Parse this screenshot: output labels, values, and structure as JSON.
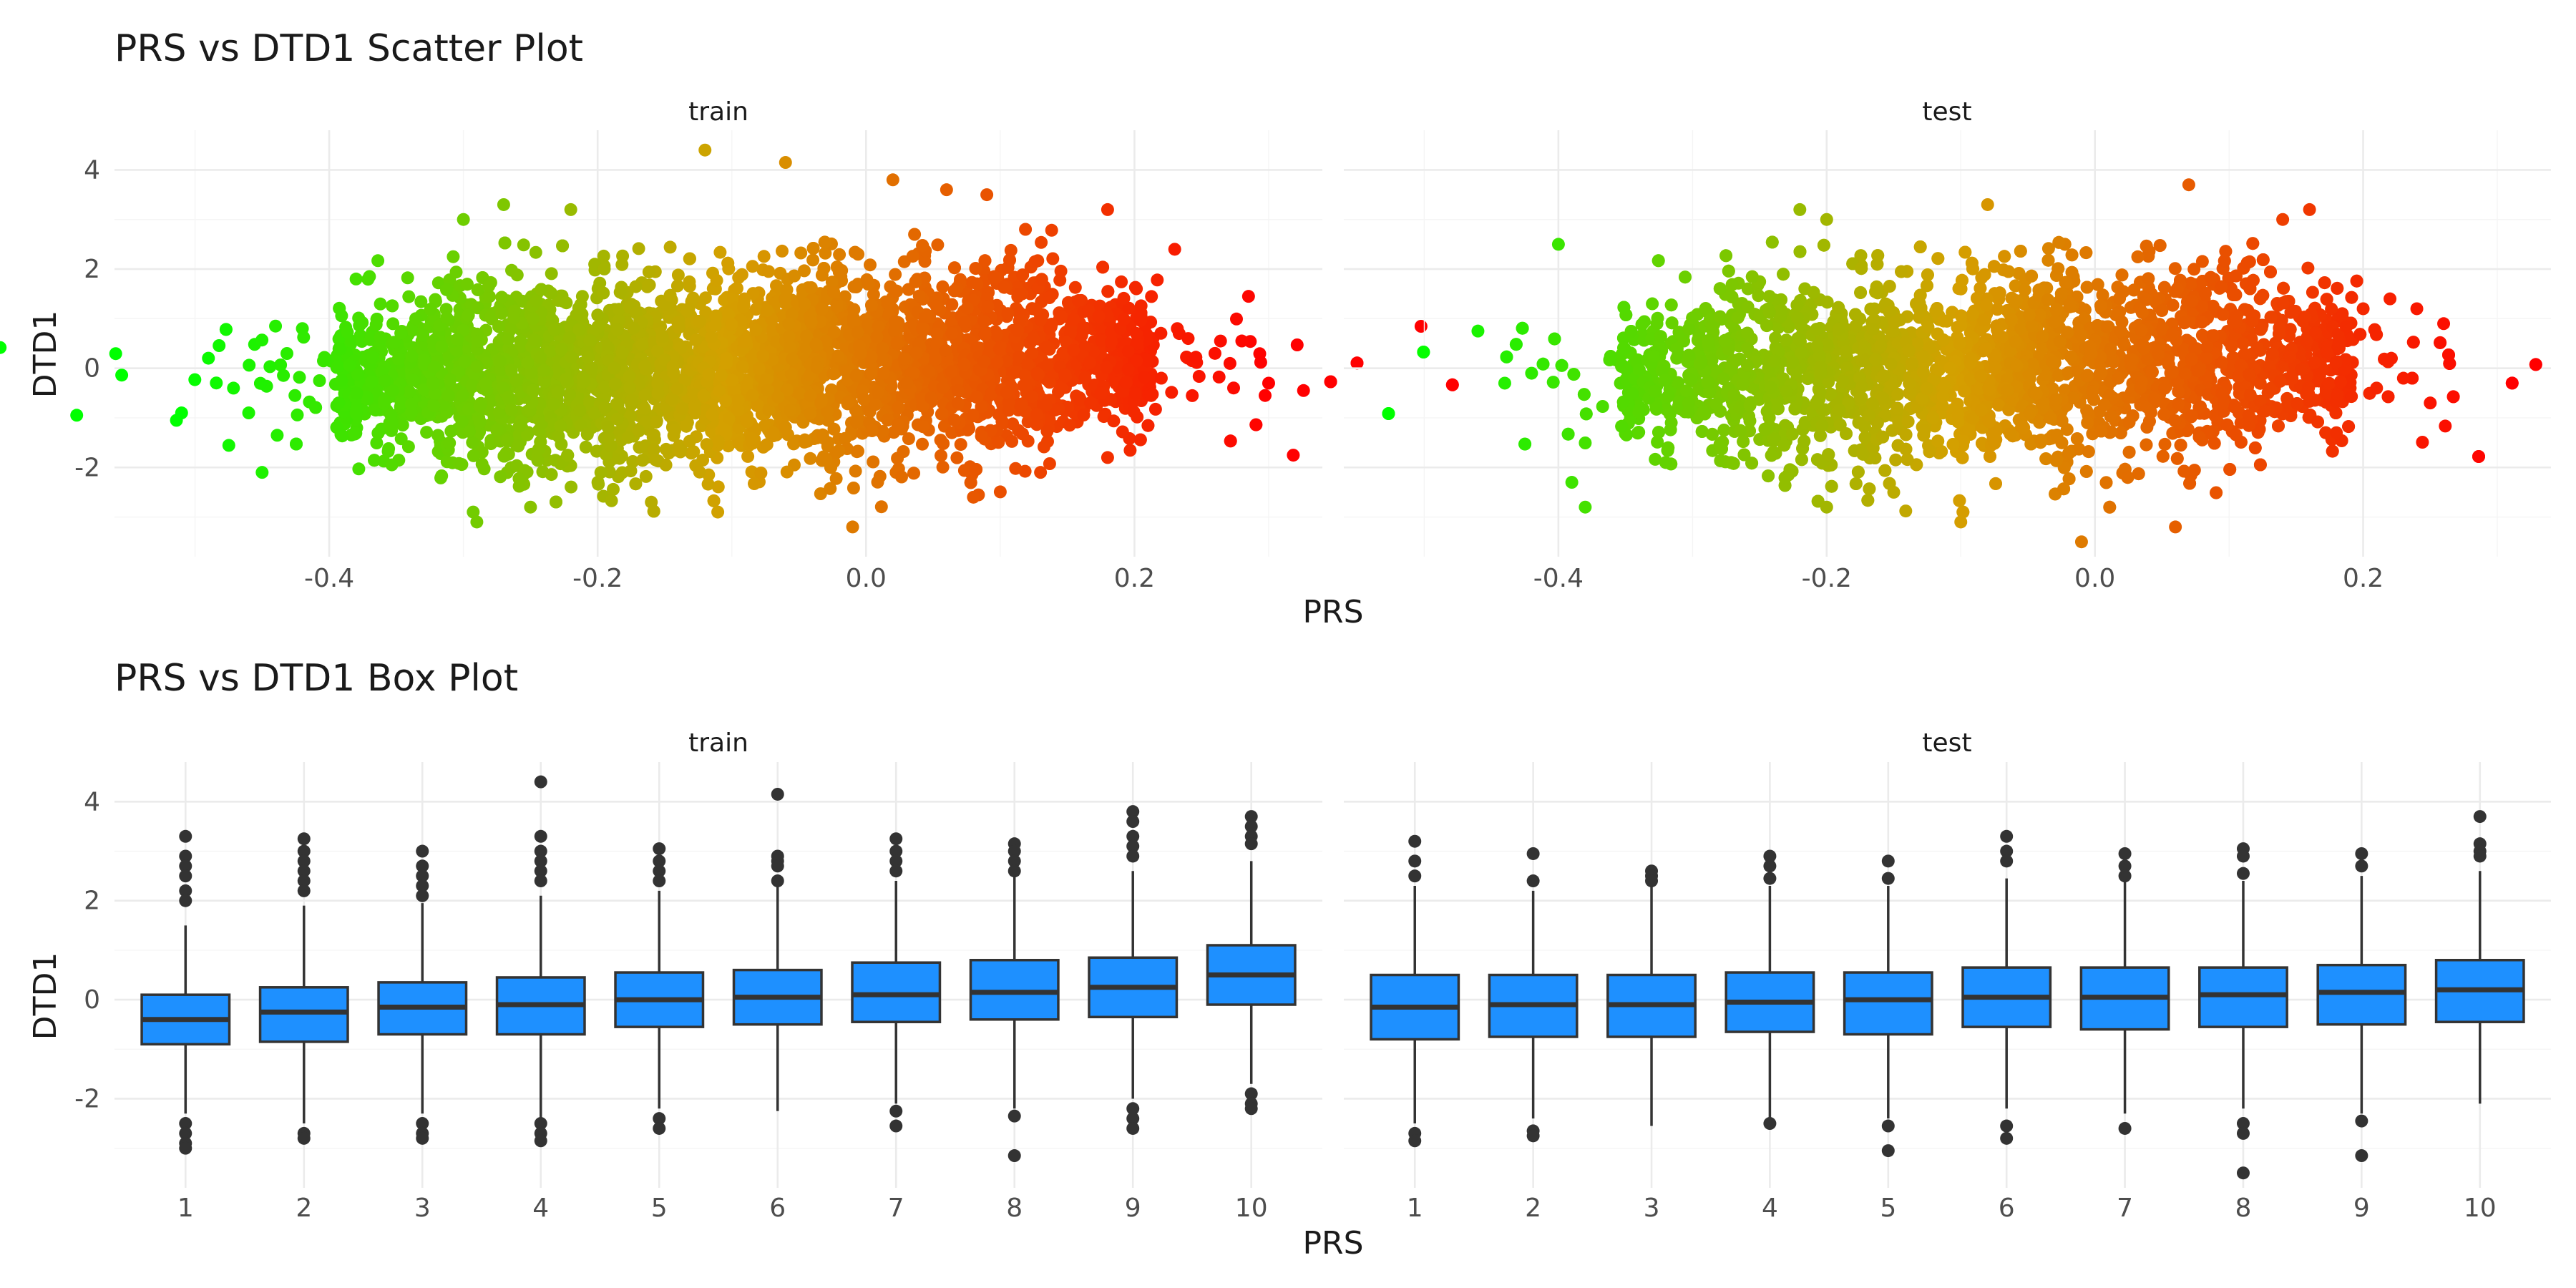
{
  "chart_data": [
    {
      "type": "scatter",
      "title": "PRS vs DTD1 Scatter Plot",
      "xlabel": "PRS",
      "ylabel": "DTD1",
      "facets": [
        "train",
        "test"
      ],
      "xlim": [
        -0.56,
        0.34
      ],
      "ylim": [
        -3.8,
        4.8
      ],
      "x_ticks": [
        -0.4,
        -0.2,
        0.0,
        0.2
      ],
      "x_tick_labels": [
        "-0.4",
        "-0.2",
        "0.0",
        "0.2"
      ],
      "y_ticks": [
        -2,
        0,
        2,
        4
      ],
      "y_tick_labels": [
        "-2",
        "0",
        "2",
        "4"
      ],
      "color_scale": {
        "low": "#00ff00",
        "mid": "#d4a000",
        "high": "#ff0000",
        "range": [
          -0.51,
          0.3
        ]
      },
      "grid": true,
      "legend": "none",
      "series": [
        {
          "facet": "train",
          "summary": {
            "x_range": [
              -0.51,
              0.3
            ],
            "y_range": [
              -3.2,
              4.4
            ],
            "x_core": [
              -0.38,
              0.2
            ]
          },
          "points": [
            [
              -0.51,
              -0.9
            ],
            [
              -0.45,
              -2.1
            ],
            [
              -0.44,
              0.85
            ],
            [
              -0.42,
              0.8
            ],
            [
              -0.46,
              -0.9
            ],
            [
              -0.38,
              1.8
            ],
            [
              -0.37,
              1.85
            ],
            [
              -0.3,
              3.0
            ],
            [
              -0.29,
              -3.1
            ],
            [
              -0.27,
              3.3
            ],
            [
              -0.22,
              3.2
            ],
            [
              -0.12,
              4.4
            ],
            [
              -0.06,
              4.15
            ],
            [
              0.02,
              3.8
            ],
            [
              0.06,
              3.6
            ],
            [
              0.09,
              3.5
            ],
            [
              0.18,
              3.2
            ],
            [
              0.23,
              2.4
            ],
            [
              0.285,
              1.45
            ],
            [
              0.28,
              0.55
            ],
            [
              0.3,
              -0.3
            ],
            [
              -0.01,
              -3.2
            ],
            [
              0.18,
              -1.8
            ],
            [
              0.13,
              -2.1
            ],
            [
              0.24,
              0.6
            ],
            [
              0.22,
              -0.2
            ],
            [
              0.26,
              0.3
            ],
            [
              -0.16,
              -2.7
            ],
            [
              0.08,
              -2.6
            ],
            [
              -0.25,
              -2.8
            ]
          ]
        },
        {
          "facet": "test",
          "summary": {
            "x_range": [
              -0.46,
              0.26
            ],
            "y_range": [
              -3.5,
              3.7
            ],
            "x_core": [
              -0.34,
              0.18
            ]
          },
          "points": [
            [
              -0.46,
              0.75
            ],
            [
              -0.4,
              2.5
            ],
            [
              -0.42,
              -0.1
            ],
            [
              -0.39,
              -2.3
            ],
            [
              -0.38,
              -2.8
            ],
            [
              -0.33,
              1.3
            ],
            [
              -0.22,
              3.2
            ],
            [
              -0.2,
              3.0
            ],
            [
              -0.08,
              3.3
            ],
            [
              0.07,
              3.7
            ],
            [
              0.16,
              3.2
            ],
            [
              0.14,
              3.0
            ],
            [
              0.2,
              1.2
            ],
            [
              0.22,
              1.4
            ],
            [
              0.24,
              1.2
            ],
            [
              0.26,
              0.9
            ],
            [
              0.25,
              -0.7
            ],
            [
              0.23,
              -0.2
            ],
            [
              0.21,
              -0.4
            ],
            [
              -0.01,
              -3.5
            ],
            [
              0.06,
              -3.2
            ],
            [
              -0.2,
              -2.8
            ],
            [
              -0.1,
              -3.1
            ],
            [
              -0.32,
              -1.9
            ],
            [
              0.18,
              -1.3
            ],
            [
              -0.44,
              -0.3
            ],
            [
              -0.15,
              -2.5
            ]
          ]
        }
      ]
    },
    {
      "type": "box",
      "title": "PRS vs DTD1 Box Plot",
      "xlabel": "PRS",
      "ylabel": "DTD1",
      "facets": [
        "train",
        "test"
      ],
      "categories": [
        "1",
        "2",
        "3",
        "4",
        "5",
        "6",
        "7",
        "8",
        "9",
        "10"
      ],
      "ylim": [
        -3.8,
        4.8
      ],
      "y_ticks": [
        -2,
        0,
        2,
        4
      ],
      "y_tick_labels": [
        "-2",
        "0",
        "2",
        "4"
      ],
      "box_color": "#1e90ff",
      "grid": true,
      "series": [
        {
          "facet": "train",
          "boxes": [
            {
              "q1": -0.9,
              "median": -0.4,
              "q3": 0.1,
              "lo": -2.3,
              "hi": 1.5,
              "outliers": [
                3.3,
                2.9,
                2.7,
                2.5,
                2.2,
                2.0,
                -2.5,
                -2.7,
                -2.9,
                -3.0
              ]
            },
            {
              "q1": -0.85,
              "median": -0.25,
              "q3": 0.25,
              "lo": -2.5,
              "hi": 1.9,
              "outliers": [
                3.25,
                3.0,
                2.8,
                2.6,
                2.4,
                2.2,
                -2.7,
                -2.8
              ]
            },
            {
              "q1": -0.7,
              "median": -0.15,
              "q3": 0.35,
              "lo": -2.3,
              "hi": 1.95,
              "outliers": [
                3.0,
                2.7,
                2.5,
                2.3,
                2.1,
                -2.5,
                -2.7,
                -2.8
              ]
            },
            {
              "q1": -0.7,
              "median": -0.1,
              "q3": 0.45,
              "lo": -2.4,
              "hi": 2.1,
              "outliers": [
                4.4,
                3.3,
                3.0,
                2.8,
                2.6,
                2.4,
                -2.5,
                -2.7,
                -2.85
              ]
            },
            {
              "q1": -0.55,
              "median": 0.0,
              "q3": 0.55,
              "lo": -2.2,
              "hi": 2.2,
              "outliers": [
                3.05,
                2.8,
                2.6,
                2.4,
                -2.4,
                -2.6
              ]
            },
            {
              "q1": -0.5,
              "median": 0.05,
              "q3": 0.6,
              "lo": -2.25,
              "hi": 2.3,
              "outliers": [
                4.15,
                2.9,
                2.8,
                2.7,
                2.4
              ]
            },
            {
              "q1": -0.45,
              "median": 0.1,
              "q3": 0.75,
              "lo": -2.1,
              "hi": 2.4,
              "outliers": [
                3.25,
                3.0,
                2.8,
                2.6,
                -2.25,
                -2.55
              ]
            },
            {
              "q1": -0.4,
              "median": 0.15,
              "q3": 0.8,
              "lo": -2.2,
              "hi": 2.5,
              "outliers": [
                3.15,
                3.0,
                2.8,
                2.6,
                -2.35,
                -3.15
              ]
            },
            {
              "q1": -0.35,
              "median": 0.25,
              "q3": 0.85,
              "lo": -2.0,
              "hi": 2.6,
              "outliers": [
                3.8,
                3.6,
                3.3,
                3.1,
                2.9,
                -2.2,
                -2.4,
                -2.6
              ]
            },
            {
              "q1": -0.1,
              "median": 0.5,
              "q3": 1.1,
              "lo": -1.7,
              "hi": 2.8,
              "outliers": [
                3.7,
                3.5,
                3.3,
                3.15,
                -1.9,
                -2.1,
                -2.2
              ]
            }
          ]
        },
        {
          "facet": "test",
          "boxes": [
            {
              "q1": -0.8,
              "median": -0.15,
              "q3": 0.5,
              "lo": -2.5,
              "hi": 2.3,
              "outliers": [
                3.2,
                2.8,
                2.5,
                -2.7,
                -2.85
              ]
            },
            {
              "q1": -0.75,
              "median": -0.1,
              "q3": 0.5,
              "lo": -2.4,
              "hi": 2.2,
              "outliers": [
                2.95,
                2.4,
                -2.65,
                -2.75
              ]
            },
            {
              "q1": -0.75,
              "median": -0.1,
              "q3": 0.5,
              "lo": -2.55,
              "hi": 2.3,
              "outliers": [
                2.6,
                2.5,
                2.4
              ]
            },
            {
              "q1": -0.65,
              "median": -0.05,
              "q3": 0.55,
              "lo": -2.4,
              "hi": 2.3,
              "outliers": [
                2.9,
                2.7,
                2.45,
                -2.5
              ]
            },
            {
              "q1": -0.7,
              "median": 0.0,
              "q3": 0.55,
              "lo": -2.4,
              "hi": 2.3,
              "outliers": [
                2.8,
                2.45,
                -2.55,
                -3.05
              ]
            },
            {
              "q1": -0.55,
              "median": 0.05,
              "q3": 0.65,
              "lo": -2.2,
              "hi": 2.45,
              "outliers": [
                3.3,
                3.0,
                2.8,
                -2.55,
                -2.8
              ]
            },
            {
              "q1": -0.6,
              "median": 0.05,
              "q3": 0.65,
              "lo": -2.3,
              "hi": 2.4,
              "outliers": [
                2.95,
                2.7,
                2.5,
                -2.6
              ]
            },
            {
              "q1": -0.55,
              "median": 0.1,
              "q3": 0.65,
              "lo": -2.2,
              "hi": 2.4,
              "outliers": [
                3.05,
                2.9,
                2.55,
                -2.5,
                -2.7,
                -3.5
              ]
            },
            {
              "q1": -0.5,
              "median": 0.15,
              "q3": 0.7,
              "lo": -2.3,
              "hi": 2.5,
              "outliers": [
                2.95,
                2.7,
                -2.45,
                -3.15
              ]
            },
            {
              "q1": -0.45,
              "median": 0.2,
              "q3": 0.8,
              "lo": -2.1,
              "hi": 2.6,
              "outliers": [
                3.7,
                3.15,
                3.0,
                2.9
              ]
            }
          ]
        }
      ]
    }
  ]
}
